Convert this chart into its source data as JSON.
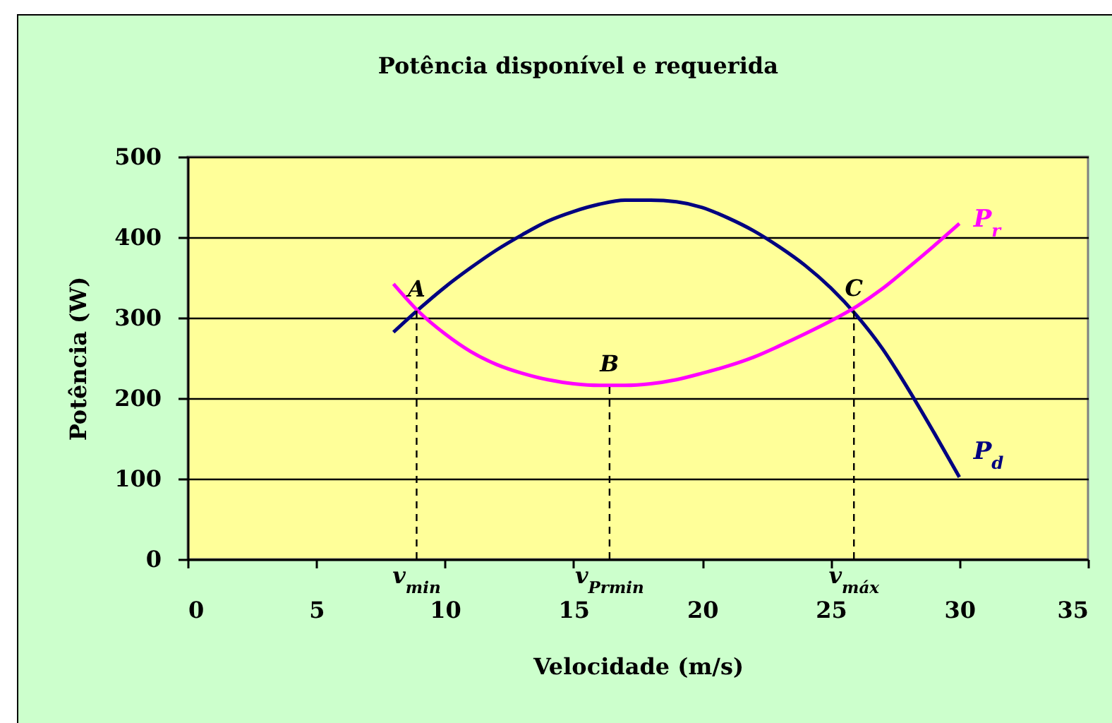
{
  "chart_data": {
    "type": "line",
    "title": "Potência disponível e requerida",
    "xlabel": "Velocidade (m/s)",
    "ylabel": "Potência (W)",
    "x": [
      8,
      9,
      10,
      11,
      12,
      13,
      14,
      15,
      16,
      17,
      18,
      19,
      20,
      21,
      22,
      23,
      24,
      25,
      26,
      27,
      28,
      29,
      30
    ],
    "series": [
      {
        "name": "P$_{d}$",
        "color": "#000080",
        "values": [
          282,
          311,
          338,
          362,
          384,
          403,
          420,
          432,
          441,
          446,
          446,
          444,
          437,
          424,
          408,
          388,
          365,
          337,
          303,
          262,
          212,
          158,
          102
        ]
      },
      {
        "name": "P$_{r}$",
        "color": "#ff00ff",
        "values": [
          342,
          307,
          280,
          258,
          242,
          231,
          223,
          218,
          216,
          216,
          218,
          223,
          231,
          240,
          251,
          265,
          280,
          296,
          314,
          336,
          362,
          389,
          417
        ]
      },
      {
        "x": [
          8.9,
          8.9
        ],
        "values": [
          0,
          309
        ],
        "color": "#000000",
        "line_style": "dashed"
      },
      {
        "x": [
          16.4,
          16.4
        ],
        "values": [
          0,
          216
        ],
        "color": "#000000",
        "line_style": "dashed"
      },
      {
        "x": [
          25.9,
          25.9
        ],
        "values": [
          0,
          310
        ],
        "color": "#000000",
        "line_style": "dashed"
      }
    ],
    "annotations": [
      {
        "text": "A",
        "x": 8.9,
        "y": 309
      },
      {
        "text": "B",
        "x": 16.4,
        "y": 216
      },
      {
        "text": "C",
        "x": 25.9,
        "y": 310
      },
      {
        "text": "v$_{min}$",
        "x": 8.9,
        "y": 0
      },
      {
        "text": "v$_{Prmin}$",
        "x": 16.4,
        "y": 0
      },
      {
        "text": "v$_{máx}$",
        "x": 25.9,
        "y": 0
      }
    ],
    "xlim": [
      0,
      35
    ],
    "xticks": [
      0,
      5,
      10,
      15,
      20,
      25,
      30,
      35
    ],
    "ylim": [
      0,
      500
    ],
    "yticks": [
      0,
      100,
      200,
      300,
      400,
      500
    ],
    "grid": "y"
  }
}
